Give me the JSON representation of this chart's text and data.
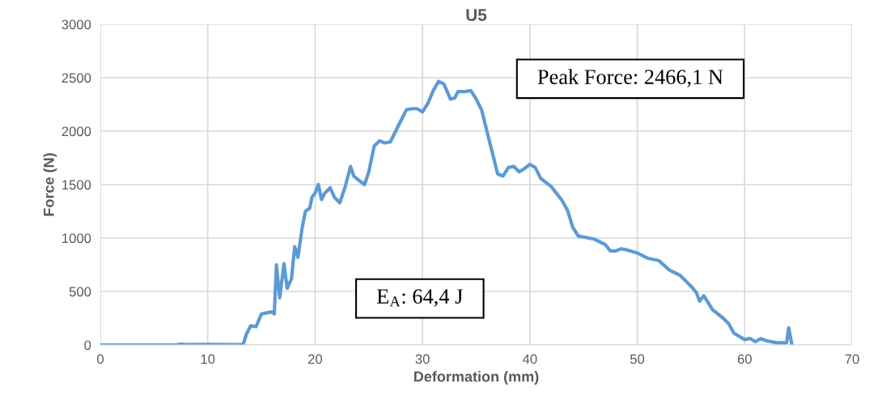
{
  "chart_data": {
    "type": "line",
    "title": "U5",
    "xlabel": "Deformation (mm)",
    "ylabel": "Force (N)",
    "annotations": [
      "Peak Force: 2466,1 N",
      "E$_{A}$: 64,4 J"
    ],
    "xlim": [
      0,
      70
    ],
    "xticks": [
      0,
      10,
      20,
      30,
      40,
      50,
      60,
      70
    ],
    "ylim": [
      0,
      3000
    ],
    "yticks": [
      0,
      500,
      1000,
      1500,
      2000,
      2500,
      3000
    ],
    "grid": true,
    "series": [
      {
        "color": "#5b9bd5",
        "x": [
          0,
          7,
          7.5,
          8,
          10,
          12,
          13.3,
          13.6,
          14,
          14.5,
          15,
          15.5,
          16,
          16.2,
          16.4,
          16.7,
          17.1,
          17.4,
          17.8,
          18.1,
          18.4,
          18.8,
          19.1,
          19.5,
          19.7,
          20,
          20.3,
          20.6,
          20.9,
          21.4,
          21.8,
          22.3,
          22.8,
          23.3,
          23.6,
          24.2,
          24.6,
          25,
          25.5,
          26,
          26.5,
          27,
          27.5,
          28,
          28.5,
          29,
          29.5,
          30,
          30.5,
          31,
          31.5,
          32,
          32.6,
          33,
          33.3,
          34,
          34.5,
          35,
          35.5,
          36,
          36.5,
          37,
          37.5,
          38,
          38.5,
          39,
          39.5,
          40,
          40.5,
          41,
          42,
          43,
          43.5,
          44,
          44.5,
          45,
          46,
          47,
          47.5,
          48,
          48.5,
          49,
          50,
          51,
          52,
          53,
          54,
          55,
          55.5,
          55.8,
          56.2,
          57,
          58,
          58.5,
          59,
          59.5,
          60,
          60.5,
          61,
          61.5,
          62,
          63,
          63.9,
          64.1,
          64.4
        ],
        "values": [
          0,
          0,
          8,
          3,
          5,
          3,
          5,
          100,
          180,
          170,
          290,
          300,
          310,
          290,
          750,
          440,
          760,
          530,
          620,
          920,
          820,
          1100,
          1250,
          1280,
          1380,
          1420,
          1500,
          1360,
          1420,
          1470,
          1380,
          1330,
          1480,
          1670,
          1580,
          1530,
          1500,
          1620,
          1860,
          1910,
          1890,
          1900,
          2000,
          2100,
          2200,
          2210,
          2210,
          2180,
          2260,
          2380,
          2466,
          2440,
          2300,
          2310,
          2370,
          2370,
          2380,
          2300,
          2200,
          2000,
          1800,
          1600,
          1580,
          1660,
          1670,
          1620,
          1650,
          1690,
          1660,
          1560,
          1480,
          1350,
          1260,
          1100,
          1020,
          1010,
          990,
          940,
          880,
          880,
          900,
          890,
          860,
          810,
          790,
          700,
          650,
          550,
          490,
          410,
          460,
          330,
          250,
          200,
          110,
          80,
          50,
          60,
          30,
          60,
          40,
          20,
          20,
          160,
          0
        ]
      }
    ]
  }
}
